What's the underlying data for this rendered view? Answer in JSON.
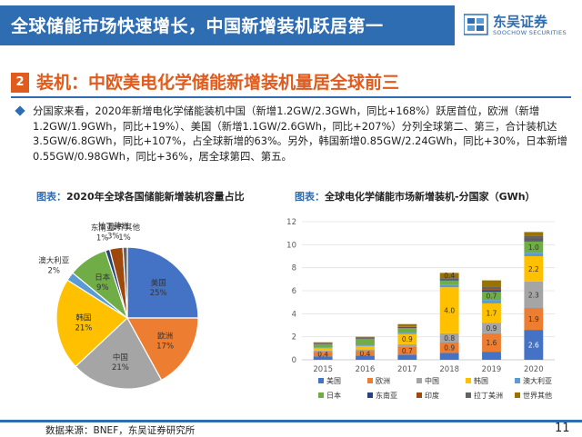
{
  "header": {
    "title": "全球储能市场快速增长，中国新增装机跃居第一",
    "logo_cn": "东吴证券",
    "logo_en": "SOOCHOW SECURITIES"
  },
  "section": {
    "number": "2",
    "title": "装机：中欧美电化学储能新增装机量居全球前三"
  },
  "paragraph": "分国家来看，2020年新增电化学储能装机中国（新增1.2GW/2.3GWh，同比+168%）跃居首位，欧洲（新增1.2GW/1.9GWh，同比+19%）、美国（新增1.1GW/2.6GWh，同比+207%）分列全球第二、第三，合计装机达3.5GW/6.8GWh，同比+107%，占全球新增的63%。另外，韩国新增0.85GW/2.24GWh，同比+30%，日本新增0.55GW/0.98GWh，同比+36%，居全球第四、第五。",
  "left_chart": {
    "label": "图表：",
    "title": "2020年全球各国储能新增装机容量占比"
  },
  "right_chart": {
    "label": "图表：",
    "title": "全球电化学储能市场新增装机-分国家（GWh）"
  },
  "footer": {
    "source": "数据来源：BNEF，东吴证券研究所",
    "page": "11"
  },
  "chart_data": [
    {
      "type": "pie",
      "title": "2020年全球各国储能新增装机容量占比",
      "slices": [
        {
          "name": "美国",
          "value": 25,
          "label": "25%",
          "color": "#4472c4"
        },
        {
          "name": "欧洲",
          "value": 17,
          "label": "17%",
          "color": "#ed7d31"
        },
        {
          "name": "中国",
          "value": 21,
          "label": "21%",
          "color": "#a5a5a5"
        },
        {
          "name": "韩国",
          "value": 21,
          "label": "21%",
          "color": "#ffc000"
        },
        {
          "name": "澳大利亚",
          "value": 2,
          "label": "2%",
          "color": "#5b9bd5"
        },
        {
          "name": "日本",
          "value": 9,
          "label": "9%",
          "color": "#70ad47"
        },
        {
          "name": "东南亚",
          "value": 1,
          "label": "1%",
          "color": "#264478"
        },
        {
          "name": "拉丁美洲",
          "value": 3,
          "label": "3%",
          "color": "#9e480e"
        },
        {
          "name": "世界其他",
          "value": 1,
          "label": "1%",
          "color": "#636363"
        }
      ]
    },
    {
      "type": "bar",
      "stacked": true,
      "title": "全球电化学储能市场新增装机-分国家（GWh）",
      "categories": [
        "2015",
        "2016",
        "2017",
        "2018",
        "2019",
        "2020"
      ],
      "ylim": [
        0,
        12
      ],
      "yticks": [
        0,
        2,
        4,
        6,
        8,
        10,
        12
      ],
      "series": [
        {
          "name": "美国",
          "color": "#4472c4",
          "values": [
            0.3,
            0.35,
            0.45,
            0.6,
            0.7,
            2.6
          ],
          "labels": [
            "",
            "",
            "",
            "",
            "",
            "2.6"
          ]
        },
        {
          "name": "欧洲",
          "color": "#ed7d31",
          "values": [
            0.4,
            0.4,
            0.7,
            0.9,
            1.6,
            1.9
          ],
          "labels": [
            "0.4",
            "0.4",
            "0.7",
            "0.9",
            "1.6",
            "1.9"
          ]
        },
        {
          "name": "中国",
          "color": "#a5a5a5",
          "values": [
            0.1,
            0.15,
            0.2,
            0.8,
            0.9,
            2.3
          ],
          "labels": [
            "",
            "",
            "",
            "0.8",
            "0.9",
            "2.3"
          ]
        },
        {
          "name": "韩国",
          "color": "#ffc000",
          "values": [
            0.2,
            0.3,
            0.9,
            4.0,
            1.7,
            2.2
          ],
          "labels": [
            "",
            "",
            "0.9",
            "4.0",
            "1.7",
            "2.2"
          ]
        },
        {
          "name": "澳大利亚",
          "color": "#5b9bd5",
          "values": [
            0.05,
            0.1,
            0.1,
            0.2,
            0.3,
            0.3
          ],
          "labels": [
            "",
            "",
            "",
            "",
            "",
            ""
          ]
        },
        {
          "name": "日本",
          "color": "#70ad47",
          "values": [
            0.3,
            0.5,
            0.4,
            0.4,
            0.7,
            1.0
          ],
          "labels": [
            "",
            "",
            "",
            "",
            "0.7",
            "1.0"
          ]
        },
        {
          "name": "东南亚",
          "color": "#264478",
          "values": [
            0.02,
            0.05,
            0.05,
            0.05,
            0.1,
            0.1
          ],
          "labels": [
            "",
            "",
            "",
            "",
            "",
            ""
          ]
        },
        {
          "name": "印度",
          "color": "#9e480e",
          "values": [
            0.02,
            0.03,
            0.05,
            0.1,
            0.15,
            0.1
          ],
          "labels": [
            "",
            "",
            "",
            "",
            "",
            ""
          ]
        },
        {
          "name": "拉丁美洲",
          "color": "#636363",
          "values": [
            0.03,
            0.05,
            0.05,
            0.1,
            0.2,
            0.3
          ],
          "labels": [
            "",
            "",
            "",
            "",
            "",
            ""
          ]
        },
        {
          "name": "世界其他",
          "color": "#997300",
          "values": [
            0.1,
            0.07,
            0.2,
            0.4,
            0.55,
            0.3
          ],
          "labels": [
            "",
            "",
            "",
            "0.4",
            "",
            ""
          ]
        }
      ]
    }
  ]
}
